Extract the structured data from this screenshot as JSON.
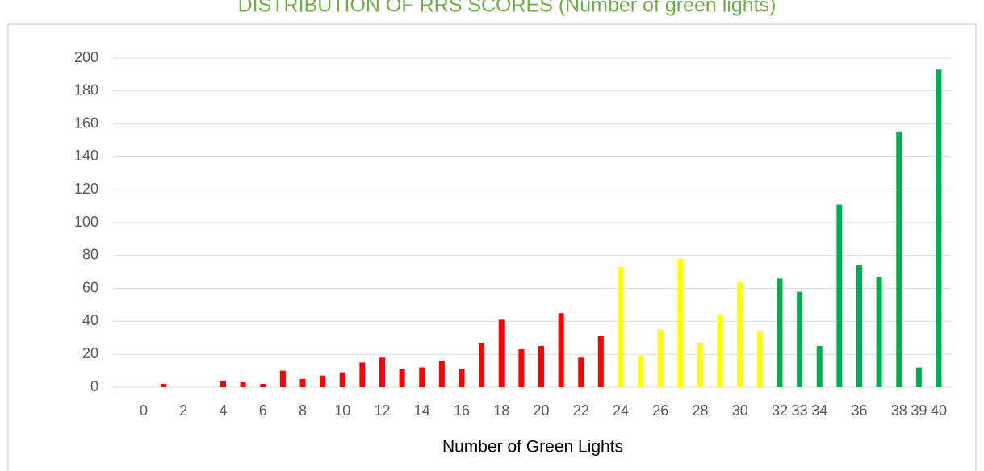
{
  "chart_data": {
    "type": "bar",
    "title": "DISTRIBUTION OF RRS SCORES (Number of green lights)",
    "x_label": "Number of Green Lights",
    "categories": [
      "0",
      null,
      "2",
      null,
      "4",
      null,
      "6",
      null,
      "8",
      null,
      "10",
      null,
      "12",
      null,
      "14",
      null,
      "16",
      null,
      "18",
      null,
      "20",
      null,
      "22",
      null,
      "24",
      null,
      "26",
      null,
      "28",
      null,
      "30",
      null,
      "32",
      "33",
      "34",
      null,
      "36",
      null,
      "38",
      "39",
      "40"
    ],
    "values": [
      0,
      2,
      0,
      0,
      4,
      3,
      2,
      10,
      5,
      7,
      9,
      15,
      18,
      11,
      12,
      16,
      11,
      27,
      41,
      23,
      25,
      45,
      18,
      31,
      73,
      19,
      35,
      78,
      27,
      44,
      64,
      34,
      66,
      58,
      25,
      111,
      74,
      67,
      155,
      12,
      193
    ],
    "colors": [
      "#ff0000",
      "#ff0000",
      "#ff0000",
      "#ff0000",
      "#ff0000",
      "#ff0000",
      "#ff0000",
      "#ff0000",
      "#ff0000",
      "#ff0000",
      "#ff0000",
      "#ff0000",
      "#ff0000",
      "#ff0000",
      "#ff0000",
      "#ff0000",
      "#ff0000",
      "#ff0000",
      "#ff0000",
      "#ff0000",
      "#ff0000",
      "#ff0000",
      "#ff0000",
      "#ff0000",
      "#ffff00",
      "#ffff00",
      "#ffff00",
      "#ffff00",
      "#ffff00",
      "#ffff00",
      "#ffff00",
      "#ffff00",
      "#00b050",
      "#00b050",
      "#00b050",
      "#00b050",
      "#00b050",
      "#00b050",
      "#00b050",
      "#00b050",
      "#00b050"
    ],
    "ylim": [
      0,
      200
    ],
    "yticks": [
      0,
      20,
      40,
      60,
      80,
      100,
      120,
      140,
      160,
      180,
      200
    ],
    "grid": true
  }
}
